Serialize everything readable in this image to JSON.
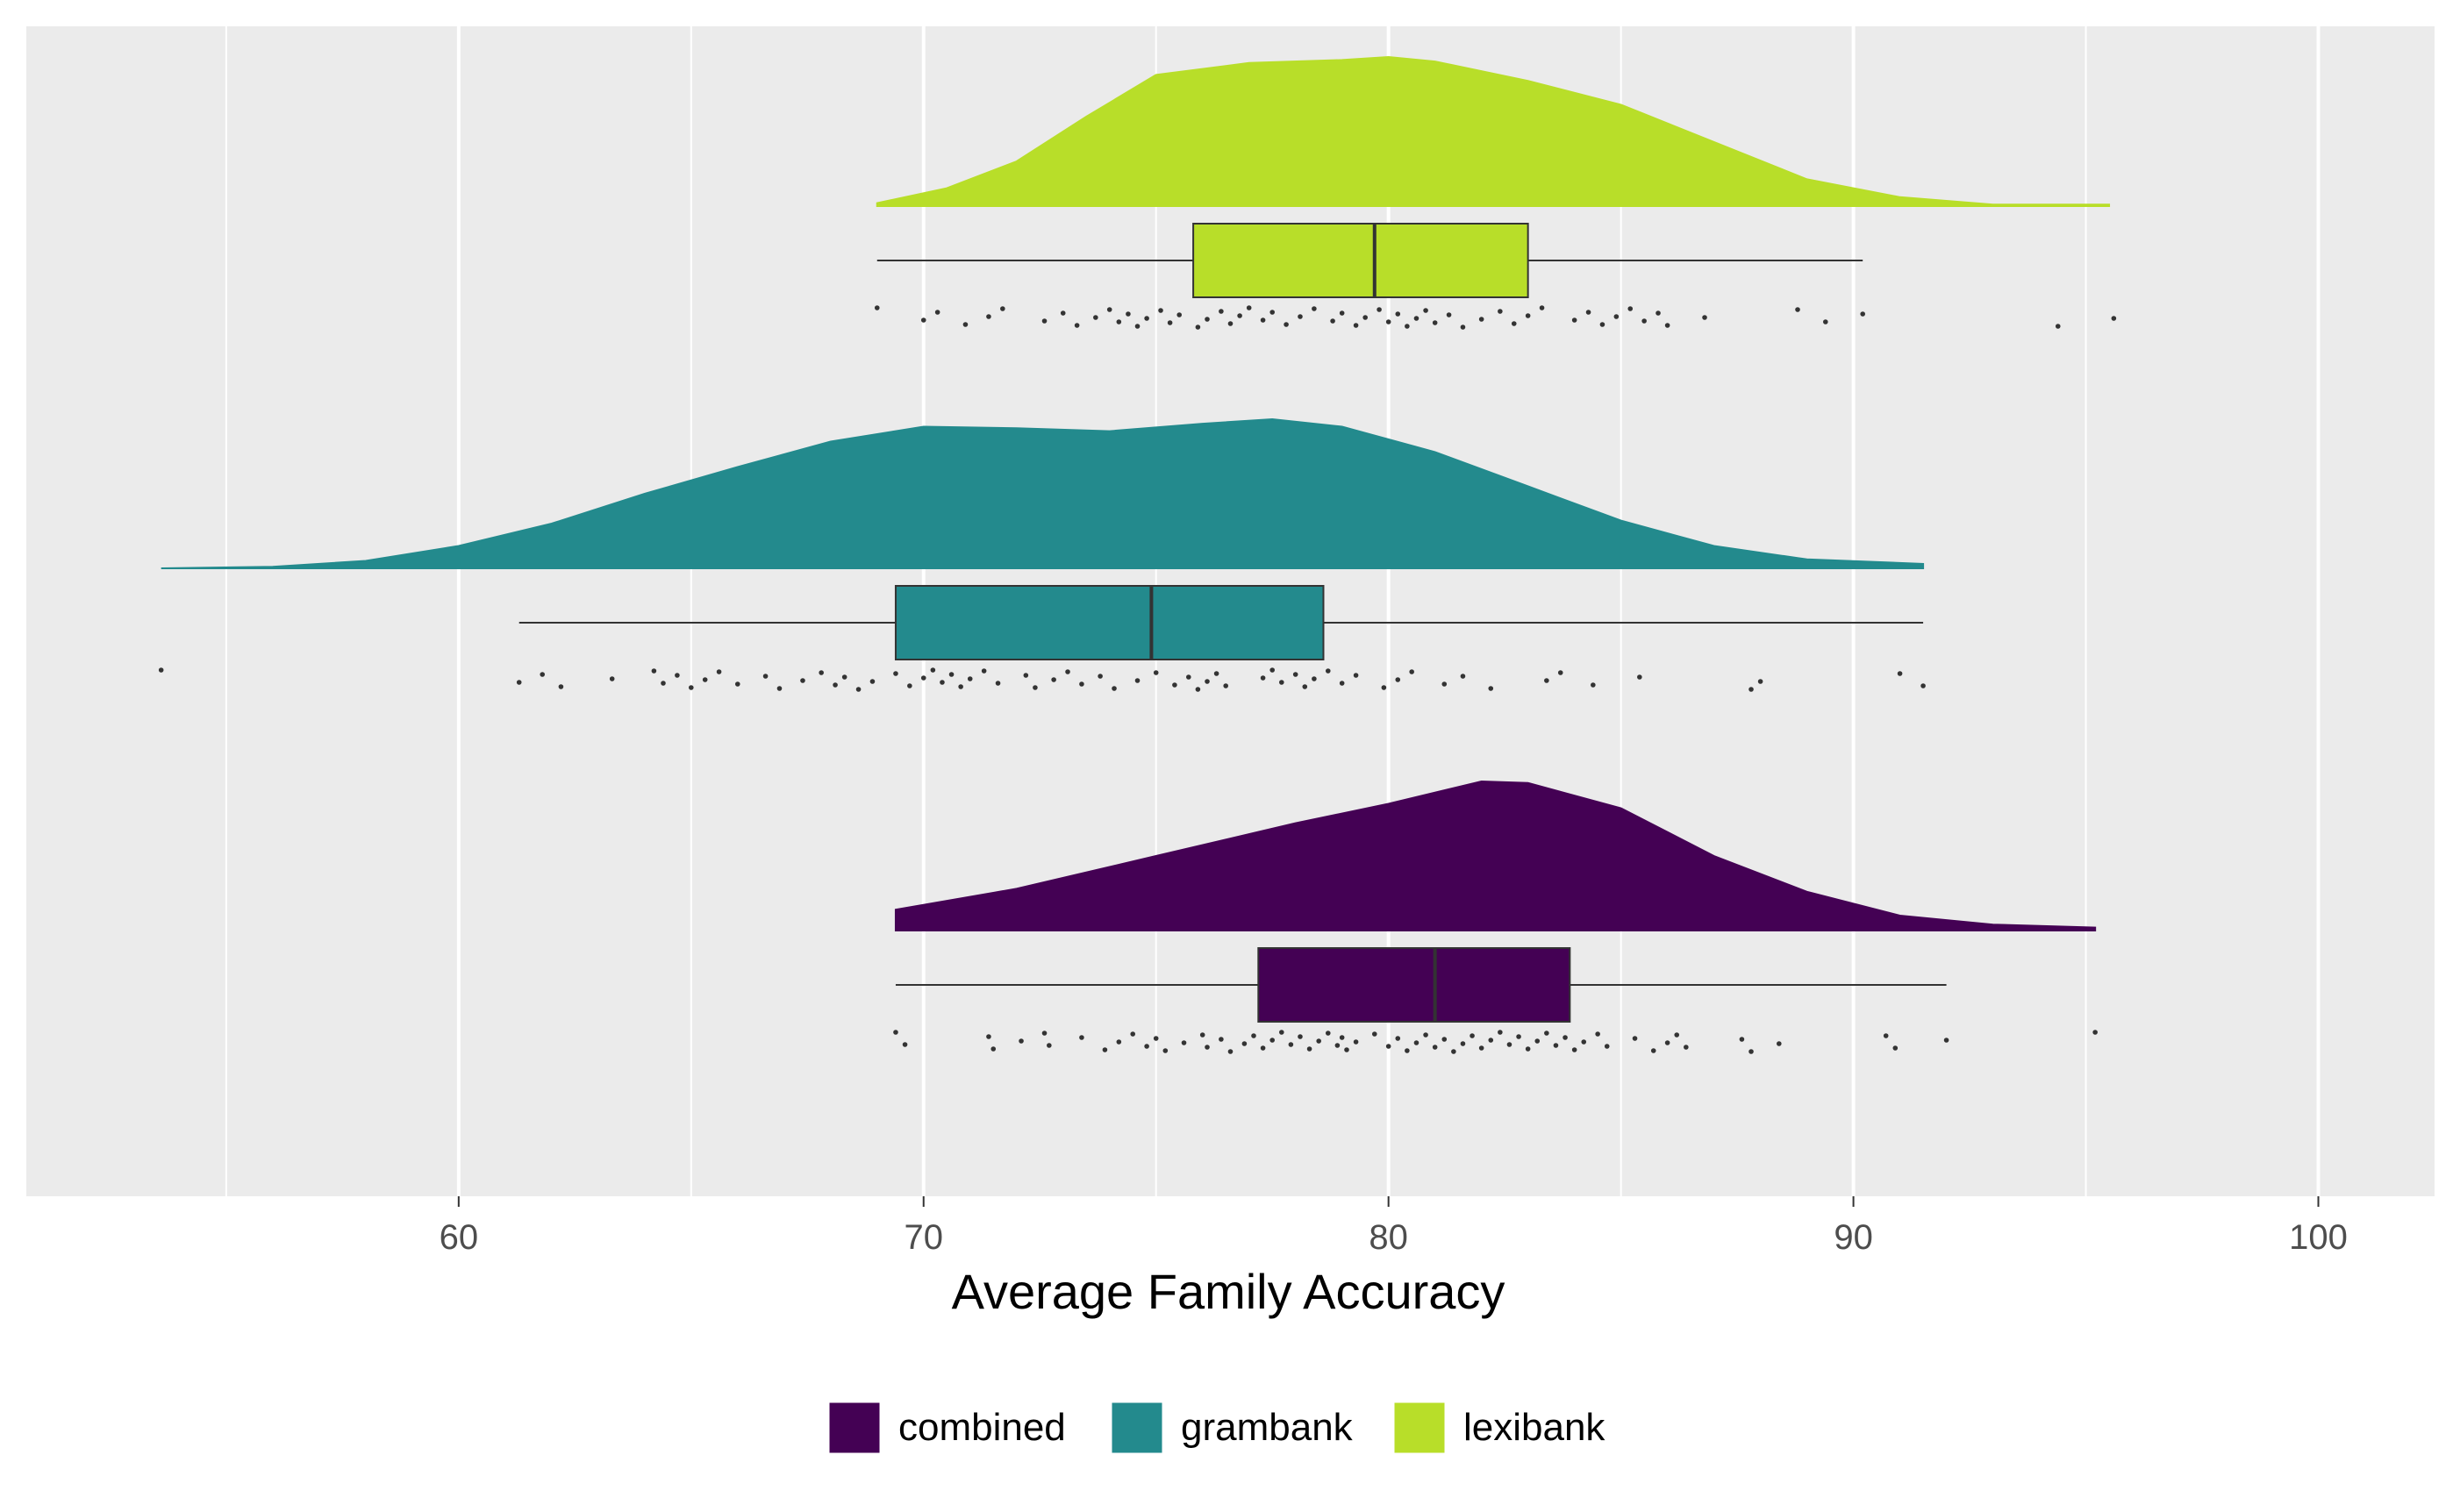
{
  "chart_data": {
    "type": "raincloud",
    "xlabel": "Average Family Accuracy",
    "xlim": [
      50.7,
      102.5
    ],
    "x_ticks": [
      60,
      70,
      80,
      90,
      100
    ],
    "grid": true,
    "legend_position": "bottom",
    "series": [
      {
        "name": "combined",
        "color": "#440154",
        "box": {
          "min": 69.4,
          "q1": 77.2,
          "median": 81.0,
          "q3": 83.9,
          "max": 92.0
        },
        "density": [
          [
            69.4,
            0.14
          ],
          [
            72,
            0.28
          ],
          [
            75,
            0.5
          ],
          [
            78,
            0.72
          ],
          [
            80,
            0.85
          ],
          [
            82,
            1.0
          ],
          [
            83,
            0.99
          ],
          [
            85,
            0.82
          ],
          [
            87,
            0.5
          ],
          [
            89,
            0.26
          ],
          [
            91,
            0.1
          ],
          [
            93,
            0.04
          ],
          [
            95.2,
            0.02
          ]
        ],
        "points": [
          69.4,
          69.6,
          71.4,
          71.5,
          72.1,
          72.6,
          72.7,
          73.4,
          73.9,
          74.2,
          74.5,
          74.8,
          75.0,
          75.2,
          75.6,
          76.0,
          76.1,
          76.4,
          76.6,
          76.9,
          77.1,
          77.3,
          77.5,
          77.7,
          77.9,
          78.1,
          78.3,
          78.5,
          78.7,
          78.9,
          79.0,
          79.1,
          79.3,
          79.7,
          80.0,
          80.2,
          80.4,
          80.6,
          80.8,
          81.0,
          81.2,
          81.4,
          81.6,
          81.8,
          82.0,
          82.2,
          82.4,
          82.6,
          82.8,
          83.0,
          83.2,
          83.4,
          83.6,
          83.8,
          84.0,
          84.2,
          84.5,
          84.7,
          85.3,
          85.7,
          86.0,
          86.2,
          86.4,
          87.6,
          87.8,
          88.4,
          90.7,
          90.9,
          92.0,
          95.2
        ]
      },
      {
        "name": "grambank",
        "color": "#238A8D",
        "box": {
          "min": 61.3,
          "q1": 69.4,
          "median": 74.9,
          "q3": 78.6,
          "max": 91.5
        },
        "density": [
          [
            53.6,
            0.0
          ],
          [
            56,
            0.01
          ],
          [
            58,
            0.05
          ],
          [
            60,
            0.15
          ],
          [
            62,
            0.3
          ],
          [
            64,
            0.5
          ],
          [
            66,
            0.68
          ],
          [
            68,
            0.85
          ],
          [
            70,
            0.95
          ],
          [
            72,
            0.94
          ],
          [
            74,
            0.92
          ],
          [
            76,
            0.97
          ],
          [
            77.5,
            1.0
          ],
          [
            79,
            0.95
          ],
          [
            81,
            0.78
          ],
          [
            83,
            0.55
          ],
          [
            85,
            0.32
          ],
          [
            87,
            0.15
          ],
          [
            89,
            0.06
          ],
          [
            91.5,
            0.03
          ]
        ],
        "points": [
          53.6,
          61.3,
          61.8,
          62.2,
          63.3,
          64.2,
          64.4,
          64.7,
          65.0,
          65.3,
          65.6,
          66.0,
          66.6,
          66.9,
          67.4,
          67.8,
          68.1,
          68.3,
          68.6,
          68.9,
          69.4,
          69.7,
          70.0,
          70.2,
          70.4,
          70.6,
          70.8,
          71.0,
          71.3,
          71.6,
          72.2,
          72.4,
          72.8,
          73.1,
          73.4,
          73.8,
          74.1,
          74.6,
          75.0,
          75.4,
          75.7,
          75.9,
          76.1,
          76.3,
          76.5,
          77.3,
          77.5,
          77.7,
          78.0,
          78.2,
          78.4,
          78.7,
          79.0,
          79.3,
          79.9,
          80.2,
          80.5,
          81.2,
          81.6,
          82.2,
          83.4,
          83.7,
          84.4,
          85.4,
          87.8,
          88.0,
          91.0,
          91.5
        ]
      },
      {
        "name": "lexibank",
        "color": "#B8DE29",
        "box": {
          "min": 69.0,
          "q1": 75.8,
          "median": 79.7,
          "q3": 83.0,
          "max": 90.2
        },
        "density": [
          [
            69.0,
            0.02
          ],
          [
            70.5,
            0.12
          ],
          [
            72,
            0.3
          ],
          [
            73.5,
            0.6
          ],
          [
            75,
            0.88
          ],
          [
            77,
            0.96
          ],
          [
            79,
            0.98
          ],
          [
            80,
            1.0
          ],
          [
            81,
            0.97
          ],
          [
            83,
            0.84
          ],
          [
            85,
            0.68
          ],
          [
            87,
            0.43
          ],
          [
            89,
            0.18
          ],
          [
            91,
            0.06
          ],
          [
            93,
            0.01
          ],
          [
            95.5,
            0.01
          ]
        ],
        "points": [
          69.0,
          70.0,
          70.3,
          70.9,
          71.4,
          71.7,
          72.6,
          73.0,
          73.3,
          73.7,
          74.0,
          74.2,
          74.4,
          74.6,
          74.8,
          75.1,
          75.3,
          75.5,
          75.9,
          76.1,
          76.4,
          76.6,
          76.8,
          77.0,
          77.3,
          77.5,
          77.8,
          78.1,
          78.4,
          78.8,
          79.0,
          79.3,
          79.5,
          79.8,
          80.0,
          80.2,
          80.4,
          80.6,
          80.8,
          81.0,
          81.3,
          81.6,
          82.0,
          82.4,
          82.7,
          83.0,
          83.3,
          84.0,
          84.3,
          84.6,
          84.9,
          85.2,
          85.5,
          85.8,
          86.0,
          86.8,
          88.8,
          89.4,
          90.2,
          94.4,
          95.6
        ]
      }
    ]
  }
}
